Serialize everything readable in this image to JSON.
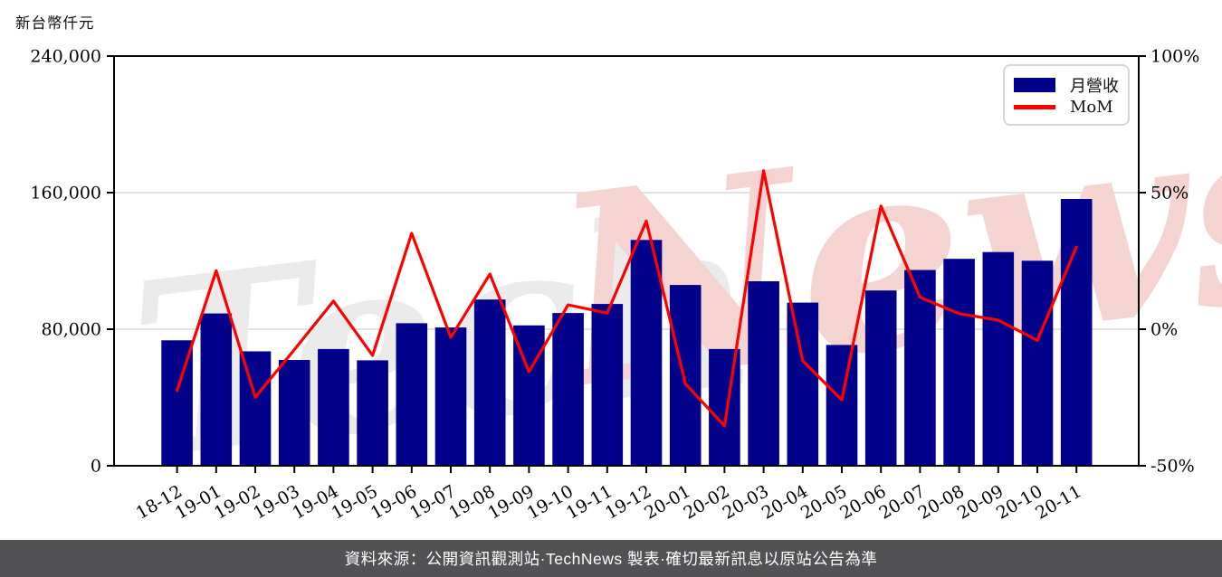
{
  "title": "新台幣仟元",
  "footer": {
    "text": "資料來源：公開資訊觀測站·TechNews 製表·確切最新訊息以原站公告為準",
    "bg_color": "#525254",
    "text_color": "#ffffff"
  },
  "watermark": {
    "part1": "Tech",
    "part2": "News",
    "color1": "#ebebeb",
    "color2": "#f5d3d0"
  },
  "chart_data": {
    "type": "bar",
    "subtype": "bar+line combo, dual y-axis",
    "categories": [
      "18-12",
      "19-01",
      "19-02",
      "19-03",
      "19-04",
      "19-05",
      "19-06",
      "19-07",
      "19-08",
      "19-09",
      "19-10",
      "19-11",
      "19-12",
      "20-01",
      "20-02",
      "20-03",
      "20-04",
      "20-05",
      "20-06",
      "20-07",
      "20-08",
      "20-09",
      "20-10",
      "20-11"
    ],
    "series": [
      {
        "name": "月營收",
        "type": "bar",
        "axis": "left",
        "color": "#00008B",
        "unit": "新台幣仟元",
        "values": [
          73500,
          89200,
          67000,
          62000,
          68400,
          61800,
          83500,
          81000,
          97400,
          82200,
          89500,
          94800,
          132300,
          105900,
          68400,
          108100,
          95600,
          70800,
          102700,
          114700,
          121200,
          125200,
          120100,
          156300
        ]
      },
      {
        "name": "MoM",
        "type": "line",
        "axis": "right",
        "color": "#FF0000",
        "unit": "%",
        "values": [
          -22.5,
          21.4,
          -24.9,
          -7.5,
          10.3,
          -9.6,
          35.1,
          -3.0,
          20.2,
          -15.6,
          8.9,
          5.9,
          39.6,
          -20.0,
          -35.4,
          58.0,
          -11.6,
          -25.9,
          45.1,
          11.7,
          5.7,
          3.3,
          -4.1,
          30.1
        ]
      }
    ],
    "y_axis_left": {
      "label": "新台幣仟元",
      "lim": [
        0,
        240000
      ],
      "ticks": [
        0,
        80000,
        160000,
        240000
      ],
      "tick_labels": [
        "0",
        "80,000",
        "160,000",
        "240,000"
      ]
    },
    "y_axis_right": {
      "lim": [
        -50,
        100
      ],
      "ticks": [
        -50,
        0,
        50,
        100
      ],
      "tick_labels": [
        "-50%",
        "0%",
        "50%",
        "100%"
      ]
    },
    "x_axis": {
      "tick_rotation_deg": -30
    },
    "grid": {
      "show": true,
      "color": "#d9d9d9"
    },
    "legend": {
      "position": "top-right",
      "entries": [
        "月營收",
        "MoM"
      ]
    },
    "axis_color": "#000000"
  }
}
